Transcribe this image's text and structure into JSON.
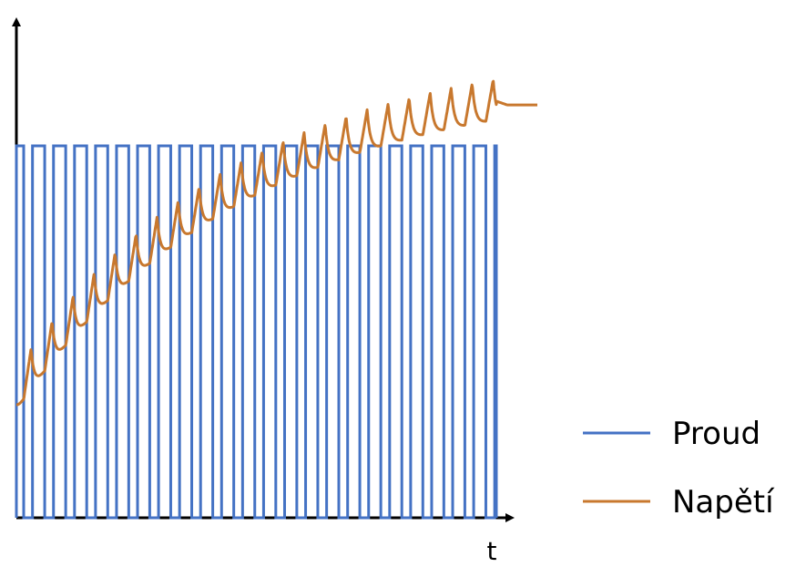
{
  "chart_data": {
    "type": "line",
    "title": "",
    "xlabel": "t",
    "ylabel": "",
    "grid": false,
    "legend_position": "bottom-right",
    "series": [
      {
        "name": "Proud",
        "color": "#4472C4",
        "shape": "square-wave",
        "pulse_count": 23,
        "low": 0,
        "high": 1
      },
      {
        "name": "Napětí",
        "color": "#C8782E",
        "shape": "rising sawtooth with decay",
        "start": 0.34,
        "end": 1.12,
        "points": [
          [
            0,
            0.34
          ],
          [
            0.06,
            0.45
          ],
          [
            0.12,
            0.52
          ],
          [
            0.18,
            0.58
          ],
          [
            0.24,
            0.64
          ],
          [
            0.3,
            0.69
          ],
          [
            0.36,
            0.73
          ],
          [
            0.42,
            0.78
          ],
          [
            0.48,
            0.82
          ],
          [
            0.54,
            0.87
          ],
          [
            0.6,
            0.91
          ],
          [
            0.66,
            0.95
          ],
          [
            0.72,
            0.98
          ],
          [
            0.78,
            1.01
          ],
          [
            0.84,
            1.04
          ],
          [
            0.9,
            1.07
          ],
          [
            0.96,
            1.1
          ],
          [
            1.0,
            1.12
          ],
          [
            1.1,
            1.11
          ]
        ]
      }
    ]
  }
}
